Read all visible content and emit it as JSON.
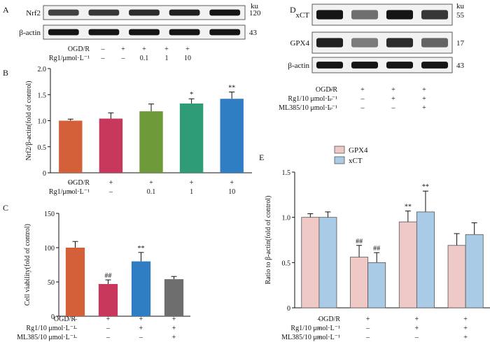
{
  "panels": {
    "A": {
      "letter": "A",
      "ku_label": "ku",
      "bands": [
        {
          "name": "Nrf2",
          "ku": "120",
          "intensity": [
            0.75,
            0.8,
            0.85,
            0.9,
            0.95
          ]
        },
        {
          "name": "β-actin",
          "ku": "43",
          "intensity": [
            0.95,
            0.95,
            0.95,
            0.95,
            0.95
          ]
        }
      ],
      "rows": [
        {
          "label": "OGD/R",
          "values": [
            "–",
            "+",
            "+",
            "+",
            "+"
          ]
        },
        {
          "label": "Rg1/μmol·L⁻¹",
          "values": [
            "–",
            "–",
            "0.1",
            "1",
            "10"
          ]
        }
      ]
    },
    "D": {
      "letter": "D",
      "ku_label": "ku",
      "bands": [
        {
          "name": "xCT",
          "ku": "55",
          "intensity": [
            0.95,
            0.55,
            0.95,
            0.8
          ]
        },
        {
          "name": "GPX4",
          "ku": "17",
          "intensity": [
            0.9,
            0.5,
            0.85,
            0.6
          ]
        },
        {
          "name": "β-actin",
          "ku": "43",
          "intensity": [
            0.95,
            0.95,
            0.95,
            0.95
          ]
        }
      ],
      "rows": [
        {
          "label": "OGD/R",
          "values": [
            "–",
            "+",
            "+",
            "+"
          ]
        },
        {
          "label": "Rg1/10 μmol·L⁻¹",
          "values": [
            "–",
            "–",
            "+",
            "+"
          ]
        },
        {
          "label": "ML385/10 μmol·L⁻¹",
          "values": [
            "–",
            "–",
            "–",
            "+"
          ]
        }
      ]
    }
  },
  "chart_data": [
    {
      "panel": "B",
      "type": "bar",
      "ylabel": "Nrf2/β-actin(fold of control)",
      "ylim": [
        0,
        2.0
      ],
      "yticks": [
        "0",
        "0.5",
        "1.0",
        "1.5",
        "2.0"
      ],
      "tick_values": [
        0,
        0.5,
        1.0,
        1.5,
        2.0
      ],
      "values": [
        1.0,
        1.04,
        1.18,
        1.33,
        1.42
      ],
      "errors": [
        0.03,
        0.11,
        0.14,
        0.09,
        0.13
      ],
      "colors": [
        "#d4603a",
        "#c8385c",
        "#6f9a3a",
        "#2e9c76",
        "#2f7ec3"
      ],
      "annotations": [
        "",
        "",
        "",
        "*",
        "**"
      ],
      "rows": [
        {
          "label": "OGD/R",
          "values": [
            "–",
            "+",
            "+",
            "+",
            "+"
          ]
        },
        {
          "label": "Rg1/μmol·L⁻¹",
          "values": [
            "–",
            "–",
            "0.1",
            "1",
            "10"
          ]
        }
      ]
    },
    {
      "panel": "C",
      "type": "bar",
      "ylabel": "Cell viability(fold of control)",
      "ylim": [
        0,
        150
      ],
      "yticks": [
        "0",
        "50",
        "100",
        "150"
      ],
      "tick_values": [
        0,
        50,
        100,
        150
      ],
      "values": [
        100,
        47,
        80,
        54
      ],
      "errors": [
        9,
        6,
        13,
        4
      ],
      "colors": [
        "#d4603a",
        "#c8385c",
        "#2f7ec3",
        "#6e6e6e"
      ],
      "annotations": [
        "",
        "##",
        "**",
        ""
      ],
      "rows": [
        {
          "label": "OGD/R",
          "values": [
            "–",
            "+",
            "+",
            "+"
          ]
        },
        {
          "label": "Rg1/10 μmol·L⁻¹",
          "values": [
            "–",
            "–",
            "+",
            "+"
          ]
        },
        {
          "label": "ML385/10 μmol·L⁻¹",
          "values": [
            "–",
            "–",
            "–",
            "+"
          ]
        }
      ]
    },
    {
      "panel": "E",
      "type": "bar",
      "ylabel": "Ratio to β-actin(fold of control)",
      "ylim": [
        0,
        1.5
      ],
      "yticks": [
        "0",
        "0.5",
        "1.0",
        "1.5"
      ],
      "tick_values": [
        0,
        0.5,
        1.0,
        1.5
      ],
      "series": [
        {
          "name": "GPX4",
          "color": "#efc9c5",
          "values": [
            1.0,
            0.56,
            0.95,
            0.69
          ],
          "errors": [
            0.04,
            0.13,
            0.12,
            0.13
          ],
          "annotations": [
            "",
            "##",
            "**",
            ""
          ]
        },
        {
          "name": "xCT",
          "color": "#a9cbe6",
          "values": [
            1.0,
            0.5,
            1.06,
            0.81
          ],
          "errors": [
            0.06,
            0.11,
            0.23,
            0.13
          ],
          "annotations": [
            "",
            "##",
            "**",
            ""
          ]
        }
      ],
      "legend_position": "top",
      "rows": [
        {
          "label": "OGD/R",
          "values": [
            "–",
            "+",
            "+",
            "+"
          ]
        },
        {
          "label": "Rg1/10 μmol·L⁻¹",
          "values": [
            "–",
            "–",
            "+",
            "+"
          ]
        },
        {
          "label": "ML385/10 μmol·L⁻¹",
          "values": [
            "–",
            "–",
            "–",
            "+"
          ]
        }
      ]
    }
  ]
}
